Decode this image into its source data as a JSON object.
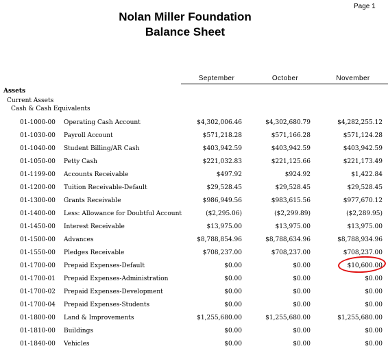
{
  "page_label": "Page 1",
  "title_line1": "Nolan Miller Foundation",
  "title_line2": "Balance Sheet",
  "columns": [
    "September",
    "October",
    "November"
  ],
  "sections": {
    "assets": "Assets",
    "current_assets": "Current Assets",
    "cash_equivalents": "Cash & Cash Equivalents"
  },
  "rows": [
    {
      "account": "01-1000-00",
      "description": "Operating Cash Account",
      "sep": "$4,302,006.46",
      "oct": "$4,302,680.79",
      "nov": "$4,282,255.12"
    },
    {
      "account": "01-1030-00",
      "description": "Payroll Account",
      "sep": "$571,218.28",
      "oct": "$571,166.28",
      "nov": "$571,124.28"
    },
    {
      "account": "01-1040-00",
      "description": "Student Billing/AR Cash",
      "sep": "$403,942.59",
      "oct": "$403,942.59",
      "nov": "$403,942.59"
    },
    {
      "account": "01-1050-00",
      "description": "Petty Cash",
      "sep": "$221,032.83",
      "oct": "$221,125.66",
      "nov": "$221,173.49"
    },
    {
      "account": "01-1199-00",
      "description": "Accounts Receivable",
      "sep": "$497.92",
      "oct": "$924.92",
      "nov": "$1,422.84"
    },
    {
      "account": "01-1200-00",
      "description": "Tuition Receivable-Default",
      "sep": "$29,528.45",
      "oct": "$29,528.45",
      "nov": "$29,528.45"
    },
    {
      "account": "01-1300-00",
      "description": "Grants Receivable",
      "sep": "$986,949.56",
      "oct": "$983,615.56",
      "nov": "$977,670.12"
    },
    {
      "account": "01-1400-00",
      "description": "Less: Allowance for Doubtful Account",
      "sep": "($2,295.06)",
      "oct": "($2,299.89)",
      "nov": "($2,289.95)"
    },
    {
      "account": "01-1450-00",
      "description": "Interest Receivable",
      "sep": "$13,975.00",
      "oct": "$13,975.00",
      "nov": "$13,975.00"
    },
    {
      "account": "01-1500-00",
      "description": "Advances",
      "sep": "$8,788,854.96",
      "oct": "$8,788,634.96",
      "nov": "$8,788,934.96"
    },
    {
      "account": "01-1550-00",
      "description": "Pledges Receivable",
      "sep": "$708,237.00",
      "oct": "$708,237.00",
      "nov": "$708,237.00"
    },
    {
      "account": "01-1700-00",
      "description": "Prepaid Expenses-Default",
      "sep": "$0.00",
      "oct": "$0.00",
      "nov": "$10,600.00"
    },
    {
      "account": "01-1700-01",
      "description": "Prepaid Expenses-Administration",
      "sep": "$0.00",
      "oct": "$0.00",
      "nov": "$0.00"
    },
    {
      "account": "01-1700-02",
      "description": "Prepaid Expenses-Development",
      "sep": "$0.00",
      "oct": "$0.00",
      "nov": "$0.00"
    },
    {
      "account": "01-1700-04",
      "description": "Prepaid Expenses-Students",
      "sep": "$0.00",
      "oct": "$0.00",
      "nov": "$0.00"
    },
    {
      "account": "01-1800-00",
      "description": "Land & Improvements",
      "sep": "$1,255,680.00",
      "oct": "$1,255,680.00",
      "nov": "$1,255,680.00"
    },
    {
      "account": "01-1810-00",
      "description": "Buildings",
      "sep": "$0.00",
      "oct": "$0.00",
      "nov": "$0.00"
    },
    {
      "account": "01-1840-00",
      "description": "Vehicles",
      "sep": "$0.00",
      "oct": "$0.00",
      "nov": "$0.00"
    }
  ],
  "annotation_color": "#e01010"
}
